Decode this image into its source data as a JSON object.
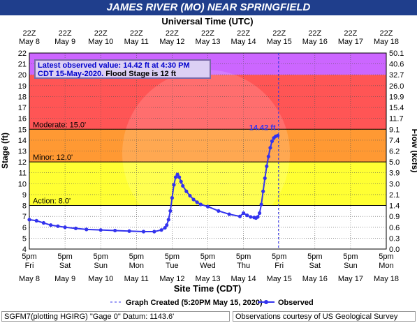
{
  "title": "JAMES RIVER (MO) NEAR SPRINGFIELD",
  "top_axis_title": "Universal Time (UTC)",
  "bottom_axis_title": "Site Time (CDT)",
  "y_left_label": "Stage (ft)",
  "y_right_label": "Flow (kcfs)",
  "observed_box": {
    "line1": "Latest observed value: 14.42 ft at 4:30 PM",
    "line2a": "CDT 15-May-2020.",
    "line2b": " Flood Stage is 12 ft"
  },
  "latest_label": "14.42 ft",
  "legend": {
    "created": "Graph Created (5:20PM May 15, 2020)",
    "observed": "Observed"
  },
  "footer": {
    "left": "SGFM7(plotting HGIRG) \"Gage 0\" Datum: 1143.6'",
    "right": "Observations courtesy of US Geological Survey"
  },
  "colors": {
    "title_bar": "#1f3e8c",
    "major": "#cc66ff",
    "major_low": "#ff5555",
    "moderate": "#ff9933",
    "minor": "#ffff33",
    "action": "#ffff99",
    "series": "#3333ee"
  },
  "chart_data": {
    "type": "line",
    "title": "JAMES RIVER (MO) NEAR SPRINGFIELD",
    "xlabel": "Site Time (CDT)",
    "ylabel": "Stage (ft)",
    "y2label": "Flow (kcfs)",
    "ylim": [
      4,
      22
    ],
    "grid": true,
    "top_ticks": [
      {
        "t": "22Z",
        "d": "May 8"
      },
      {
        "t": "22Z",
        "d": "May 9"
      },
      {
        "t": "22Z",
        "d": "May 10"
      },
      {
        "t": "22Z",
        "d": "May 11"
      },
      {
        "t": "22Z",
        "d": "May 12"
      },
      {
        "t": "22Z",
        "d": "May 13"
      },
      {
        "t": "22Z",
        "d": "May 14"
      },
      {
        "t": "22Z",
        "d": "May 15"
      },
      {
        "t": "22Z",
        "d": "May 16"
      },
      {
        "t": "22Z",
        "d": "May 17"
      },
      {
        "t": "22Z",
        "d": "May 18"
      }
    ],
    "bottom_ticks": [
      {
        "t": "5pm",
        "w": "Fri",
        "d": "May 8"
      },
      {
        "t": "5pm",
        "w": "Sat",
        "d": "May 9"
      },
      {
        "t": "5pm",
        "w": "Sun",
        "d": "May 10"
      },
      {
        "t": "5pm",
        "w": "Mon",
        "d": "May 11"
      },
      {
        "t": "5pm",
        "w": "Tue",
        "d": "May 12"
      },
      {
        "t": "5pm",
        "w": "Wed",
        "d": "May 13"
      },
      {
        "t": "5pm",
        "w": "Thu",
        "d": "May 14"
      },
      {
        "t": "5pm",
        "w": "Fri",
        "d": "May 15"
      },
      {
        "t": "5pm",
        "w": "Sat",
        "d": "May 16"
      },
      {
        "t": "5pm",
        "w": "Sun",
        "d": "May 17"
      },
      {
        "t": "5pm",
        "w": "Mon",
        "d": "May 18"
      }
    ],
    "y_ticks": [
      4,
      5,
      6,
      7,
      8,
      9,
      10,
      11,
      12,
      13,
      14,
      15,
      16,
      17,
      18,
      19,
      20,
      21,
      22
    ],
    "flow_ticks": [
      "0.0",
      "0.3",
      "0.6",
      "0.9",
      "1.4",
      "2.1",
      "3.0",
      "3.9",
      "5.0",
      "6.2",
      "7.4",
      "9.1",
      "11.7",
      "15.4",
      "19.9",
      "26.0",
      "32.7",
      "40.6",
      "50.1"
    ],
    "thresholds": [
      {
        "name": "Moderate",
        "label": "Moderate: 15.0'",
        "value": 15
      },
      {
        "name": "Minor",
        "label": "Minor: 12.0'",
        "value": 12
      },
      {
        "name": "Action",
        "label": "Action: 8.0'",
        "value": 8
      }
    ],
    "bands": [
      {
        "from": 20,
        "to": 22,
        "color": "#cc66ff"
      },
      {
        "from": 15,
        "to": 20,
        "color": "#ff5555"
      },
      {
        "from": 12,
        "to": 15,
        "color": "#ff9933"
      },
      {
        "from": 8,
        "to": 12,
        "color": "#ffff33"
      }
    ],
    "series": [
      {
        "name": "Observed",
        "x_days": [
          0.0,
          0.2,
          0.4,
          0.6,
          0.8,
          1.0,
          1.3,
          1.6,
          2.0,
          2.4,
          2.8,
          3.2,
          3.5,
          3.7,
          3.8,
          3.85,
          3.9,
          3.95,
          4.0,
          4.05,
          4.1,
          4.15,
          4.2,
          4.25,
          4.3,
          4.4,
          4.5,
          4.6,
          4.7,
          4.8,
          5.0,
          5.3,
          5.6,
          5.9,
          6.0,
          6.1,
          6.2,
          6.3,
          6.35,
          6.4,
          6.45,
          6.5,
          6.55,
          6.6,
          6.65,
          6.7,
          6.75,
          6.8,
          6.85,
          6.9,
          6.96
        ],
        "y": [
          6.7,
          6.6,
          6.4,
          6.2,
          6.1,
          6.0,
          5.9,
          5.8,
          5.75,
          5.7,
          5.65,
          5.6,
          5.6,
          5.75,
          5.95,
          6.2,
          6.7,
          7.5,
          8.7,
          9.9,
          10.6,
          10.85,
          10.6,
          10.2,
          9.8,
          9.3,
          8.9,
          8.55,
          8.3,
          8.1,
          7.9,
          7.5,
          7.2,
          7.0,
          7.3,
          7.1,
          6.95,
          6.9,
          6.85,
          6.95,
          7.3,
          8.1,
          9.3,
          10.5,
          11.6,
          12.5,
          13.3,
          13.9,
          14.2,
          14.35,
          14.42
        ]
      }
    ],
    "graph_created_day": 6.98
  }
}
